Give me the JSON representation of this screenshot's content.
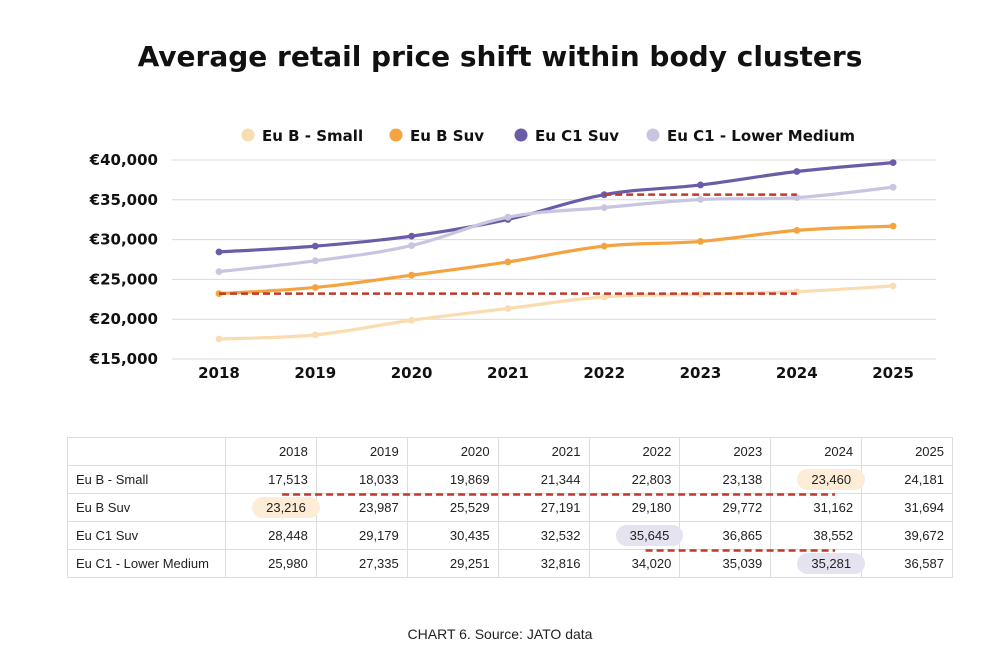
{
  "chart_data": {
    "type": "line",
    "title": "Average retail price shift within body clusters",
    "categories": [
      "2018",
      "2019",
      "2020",
      "2021",
      "2022",
      "2023",
      "2024",
      "2025"
    ],
    "ylim": [
      15000,
      40000
    ],
    "yticks": [
      "€40,000",
      "€35,000",
      "€30,000",
      "€25,000",
      "€20,000",
      "€15,000"
    ],
    "ytick_values": [
      40000,
      35000,
      30000,
      25000,
      20000,
      15000
    ],
    "grid": "horizontal",
    "legend_position": "top",
    "series": [
      {
        "name": "Eu B - Small",
        "color": "#f9dcb0",
        "values": [
          17513,
          18033,
          19869,
          21344,
          22803,
          23138,
          23460,
          24181
        ]
      },
      {
        "name": "Eu B Suv",
        "color": "#f4a340",
        "values": [
          23216,
          23987,
          25529,
          27191,
          29180,
          29772,
          31162,
          31694
        ]
      },
      {
        "name": "Eu C1 Suv",
        "color": "#6c5ca8",
        "values": [
          28448,
          29179,
          30435,
          32532,
          35645,
          36865,
          38552,
          39672
        ]
      },
      {
        "name": "Eu C1 - Lower Medium",
        "color": "#c9c5e0",
        "values": [
          25980,
          27335,
          29251,
          32816,
          34020,
          35039,
          35281,
          36587
        ]
      }
    ],
    "annotations": [
      {
        "type": "dashed-line",
        "color": "#c0392b",
        "y": 23216,
        "from": "2018",
        "to": "2024"
      },
      {
        "type": "dashed-line",
        "color": "#c0392b",
        "y": 35645,
        "from": "2022",
        "to": "2024"
      }
    ]
  },
  "table": {
    "headers": [
      "",
      "2018",
      "2019",
      "2020",
      "2021",
      "2022",
      "2023",
      "2024",
      "2025"
    ],
    "rows": [
      {
        "label": "Eu B - Small",
        "values": [
          "17,513",
          "18,033",
          "19,869",
          "21,344",
          "22,803",
          "23,138",
          "23,460",
          "24,181"
        ]
      },
      {
        "label": "Eu B Suv",
        "values": [
          "23,216",
          "23,987",
          "25,529",
          "27,191",
          "29,180",
          "29,772",
          "31,162",
          "31,694"
        ]
      },
      {
        "label": "Eu C1 Suv",
        "values": [
          "28,448",
          "29,179",
          "30,435",
          "32,532",
          "35,645",
          "36,865",
          "38,552",
          "39,672"
        ]
      },
      {
        "label": "Eu C1 - Lower Medium",
        "values": [
          "25,980",
          "27,335",
          "29,251",
          "32,816",
          "34,020",
          "35,039",
          "35,281",
          "36,587"
        ]
      }
    ],
    "highlights": [
      {
        "row": 0,
        "col": 6,
        "color": "orange"
      },
      {
        "row": 1,
        "col": 0,
        "color": "orange"
      },
      {
        "row": 2,
        "col": 4,
        "color": "purple"
      },
      {
        "row": 3,
        "col": 6,
        "color": "purple"
      }
    ],
    "dashed_connectors": [
      {
        "from_row": 1,
        "from_col": 0,
        "to_row": 0,
        "to_col": 6
      },
      {
        "from_row": 2,
        "from_col": 4,
        "to_row": 3,
        "to_col": 6
      }
    ]
  },
  "source": "CHART 6. Source: JATO data"
}
